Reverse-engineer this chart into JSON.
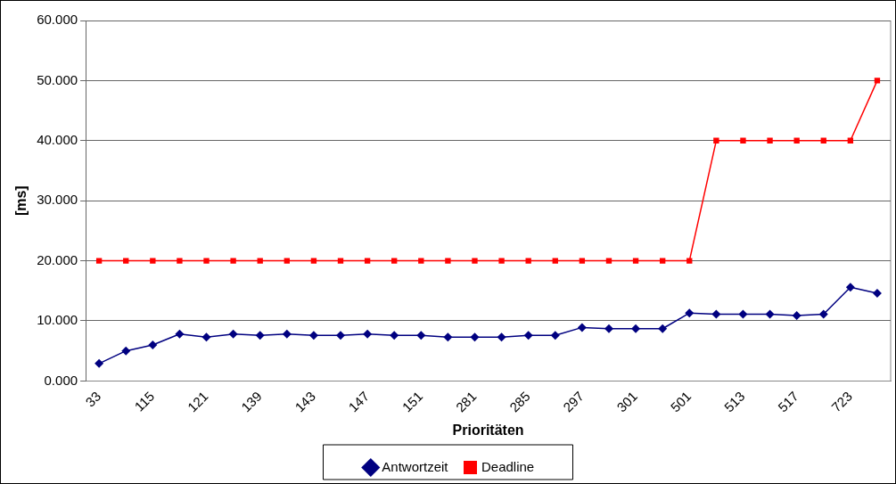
{
  "chart_data": {
    "type": "line",
    "xlabel": "Prioritäten",
    "ylabel": "[ms]",
    "categories": [
      "33",
      null,
      "115",
      null,
      "121",
      null,
      "139",
      null,
      "143",
      null,
      "147",
      null,
      "151",
      null,
      "281",
      null,
      "285",
      null,
      "297",
      null,
      "301",
      null,
      "501",
      null,
      "513",
      null,
      "517",
      null,
      "723",
      null
    ],
    "series": [
      {
        "name": "Antwortzeit",
        "color": "#000080",
        "marker": "diamond",
        "values": [
          2.9,
          5.0,
          6.0,
          7.8,
          7.3,
          7.8,
          7.6,
          7.8,
          7.6,
          7.6,
          7.8,
          7.6,
          7.6,
          7.3,
          7.3,
          7.3,
          7.6,
          7.6,
          8.9,
          8.7,
          8.7,
          8.7,
          11.3,
          11.1,
          11.1,
          11.1,
          10.9,
          11.1,
          15.6,
          14.6
        ]
      },
      {
        "name": "Deadline",
        "color": "#ff0000",
        "marker": "square",
        "values": [
          20,
          20,
          20,
          20,
          20,
          20,
          20,
          20,
          20,
          20,
          20,
          20,
          20,
          20,
          20,
          20,
          20,
          20,
          20,
          20,
          20,
          20,
          20,
          40,
          40,
          40,
          40,
          40,
          40,
          50
        ]
      }
    ],
    "ylim": [
      0,
      60
    ],
    "yticks": [
      {
        "value": 0,
        "label": "0.000"
      },
      {
        "value": 10,
        "label": "10.000"
      },
      {
        "value": 20,
        "label": "20.000"
      },
      {
        "value": 30,
        "label": "30.000"
      },
      {
        "value": 40,
        "label": "40.000"
      },
      {
        "value": 50,
        "label": "50.000"
      },
      {
        "value": 60,
        "label": "60.000"
      }
    ],
    "grid": "y",
    "legend": "bottom",
    "line_style": "solid"
  }
}
